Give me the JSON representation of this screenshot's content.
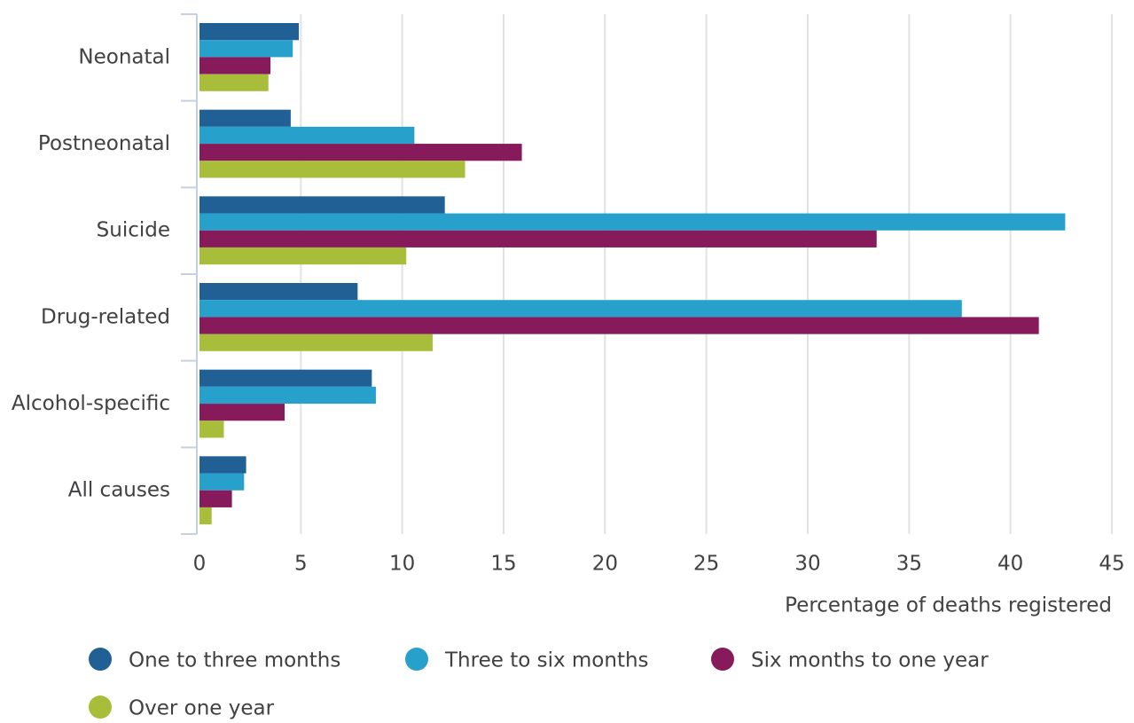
{
  "chart_data": {
    "type": "hbar",
    "categories": [
      "Neonatal",
      "Postneonatal",
      "Suicide",
      "Drug-related",
      "Alcohol-specific",
      "All causes"
    ],
    "series": [
      {
        "name": "One to three months",
        "color": "#206095",
        "values": [
          4.9,
          4.5,
          12.1,
          7.8,
          8.5,
          2.3
        ]
      },
      {
        "name": "Three to six months",
        "color": "#27a0cc",
        "values": [
          4.6,
          10.6,
          42.7,
          37.6,
          8.7,
          2.2
        ]
      },
      {
        "name": "Six months to one year",
        "color": "#871a5b",
        "values": [
          3.5,
          15.9,
          33.4,
          41.4,
          4.2,
          1.6
        ]
      },
      {
        "name": "Over one year",
        "color": "#a8bd3a",
        "values": [
          3.4,
          13.1,
          10.2,
          11.5,
          1.2,
          0.6
        ]
      }
    ],
    "xlabel": "Percentage of deaths registered",
    "xlim": [
      0,
      45
    ],
    "xticks": [
      0,
      5,
      10,
      15,
      20,
      25,
      30,
      35,
      40,
      45
    ],
    "grid": true
  }
}
